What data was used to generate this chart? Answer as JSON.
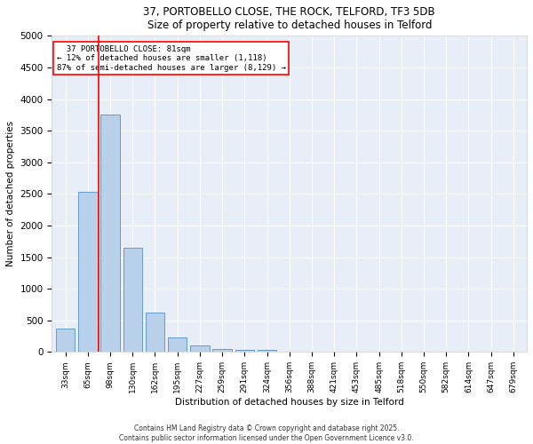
{
  "title_line1": "37, PORTOBELLO CLOSE, THE ROCK, TELFORD, TF3 5DB",
  "title_line2": "Size of property relative to detached houses in Telford",
  "xlabel": "Distribution of detached houses by size in Telford",
  "ylabel": "Number of detached properties",
  "categories": [
    "33sqm",
    "65sqm",
    "98sqm",
    "130sqm",
    "162sqm",
    "195sqm",
    "227sqm",
    "259sqm",
    "291sqm",
    "324sqm",
    "356sqm",
    "388sqm",
    "421sqm",
    "453sqm",
    "485sqm",
    "518sqm",
    "550sqm",
    "582sqm",
    "614sqm",
    "647sqm",
    "679sqm"
  ],
  "values": [
    370,
    2530,
    3760,
    1650,
    620,
    230,
    100,
    50,
    40,
    40,
    0,
    0,
    0,
    0,
    0,
    0,
    0,
    0,
    0,
    0,
    0
  ],
  "bar_color": "#b8d0ea",
  "bar_edge_color": "#6699cc",
  "vline_x": 1.5,
  "vline_color": "red",
  "annotation_text": "  37 PORTOBELLO CLOSE: 81sqm  \n← 12% of detached houses are smaller (1,118)\n87% of semi-detached houses are larger (8,129) →",
  "annotation_box_color": "white",
  "annotation_box_edge": "red",
  "ylim": [
    0,
    5000
  ],
  "yticks": [
    0,
    500,
    1000,
    1500,
    2000,
    2500,
    3000,
    3500,
    4000,
    4500,
    5000
  ],
  "background_color": "#e8eef8",
  "grid_color": "white",
  "footer_line1": "Contains HM Land Registry data © Crown copyright and database right 2025.",
  "footer_line2": "Contains public sector information licensed under the Open Government Licence v3.0."
}
